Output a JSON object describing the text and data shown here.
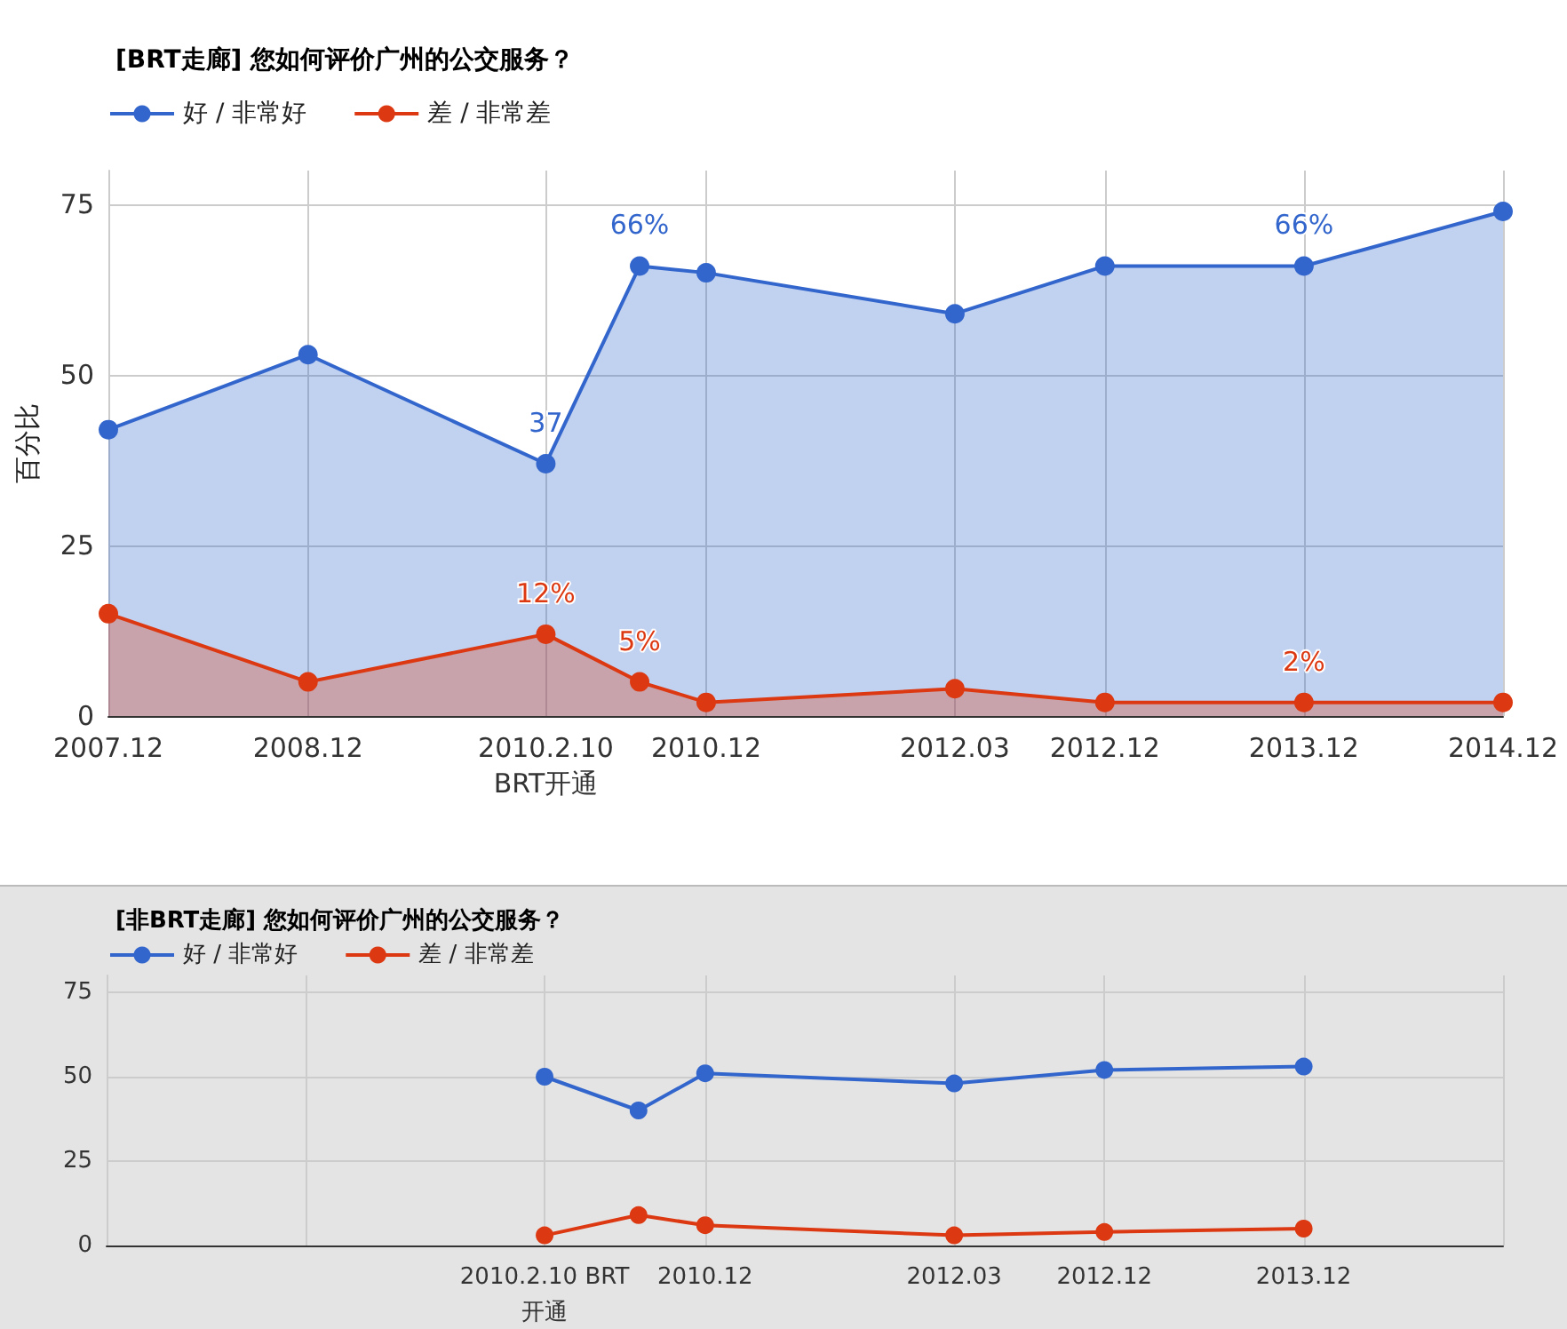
{
  "chart_data": [
    {
      "type": "area",
      "title": "[BRT走廊] 您如何评价广州的公交服务？",
      "ylabel": "百分比",
      "x": [
        "2007-12",
        "2008-12",
        "2010-02-10",
        "2010-08",
        "2010-12",
        "2012-03",
        "2012-12",
        "2013-12",
        "2014-12"
      ],
      "series": [
        {
          "name": "好 / 非常好",
          "color": "#3366cc",
          "values": [
            42,
            53,
            37,
            66,
            65,
            59,
            66,
            66,
            74
          ],
          "value_labels": [
            null,
            null,
            "37",
            "66%",
            null,
            null,
            null,
            "66%",
            null
          ]
        },
        {
          "name": "差 / 非常差",
          "color": "#dc3912",
          "values": [
            15,
            5,
            12,
            5,
            2,
            4,
            2,
            2,
            2
          ],
          "value_labels": [
            null,
            null,
            "12%",
            "5%",
            null,
            null,
            null,
            "2%",
            null
          ]
        }
      ],
      "xlim": [
        "2007-12",
        "2014-12"
      ],
      "xticks": [
        {
          "value": "2007-12",
          "label": "2007.12"
        },
        {
          "value": "2008-12",
          "label": "2008.12"
        },
        {
          "value": "2010-02-10",
          "label": "2010.2.10\nBRT开通"
        },
        {
          "value": "2010-12",
          "label": "2010.12"
        },
        {
          "value": "2012-03",
          "label": "2012.03"
        },
        {
          "value": "2012-12",
          "label": "2012.12"
        },
        {
          "value": "2013-12",
          "label": "2013.12"
        },
        {
          "value": "2014-12",
          "label": "2014.12"
        }
      ],
      "ylim": [
        0,
        80
      ],
      "yticks": [
        0,
        25,
        50,
        75
      ],
      "grid": true,
      "legend": "top left",
      "marker": "circle"
    },
    {
      "type": "line",
      "title": "[非BRT走廊] 您如何评价广州的公交服务？",
      "x": [
        "2010-02-10",
        "2010-08",
        "2010-12",
        "2012-03",
        "2012-12",
        "2013-12"
      ],
      "series": [
        {
          "name": "好 / 非常好",
          "color": "#3366cc",
          "values": [
            50,
            40,
            51,
            48,
            52,
            53
          ]
        },
        {
          "name": "差 / 非常差",
          "color": "#dc3912",
          "values": [
            3,
            9,
            6,
            3,
            4,
            5
          ]
        }
      ],
      "xlim": [
        "2007-12",
        "2014-12"
      ],
      "xticks": [
        {
          "value": "2008-12",
          "label": null
        },
        {
          "value": "2010-02-10",
          "label": "2010.2.10 BRT\n开通"
        },
        {
          "value": "2010-12",
          "label": "2010.12"
        },
        {
          "value": "2012-03",
          "label": "2012.03"
        },
        {
          "value": "2012-12",
          "label": "2012.12"
        },
        {
          "value": "2013-12",
          "label": "2013.12"
        },
        {
          "value": "2014-12",
          "label": null
        }
      ],
      "ylim": [
        0,
        80
      ],
      "yticks": [
        0,
        25,
        50,
        75
      ],
      "grid": true,
      "legend": "top left",
      "marker": "circle"
    }
  ]
}
